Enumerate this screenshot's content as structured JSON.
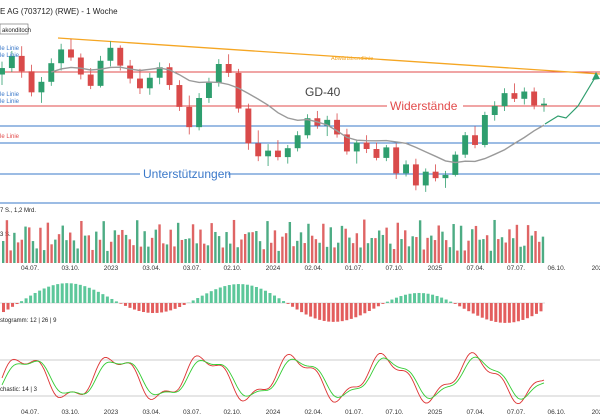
{
  "header": {
    "title": "E AG (703712) (RWE) - 1 Woche",
    "badge": "akonditoch"
  },
  "left_labels": {
    "l1": "le Linie",
    "l2": "le Linie",
    "l3": "le Linie",
    "l4": "le Linie",
    "red": "le Linie",
    "vol_info": "7 S., 1,2 Mrd.",
    "vol_tag": "3 S.",
    "macd_label": "stogramm: 12 | 26 | 9",
    "stoch_label": "chastic: 14 | 3"
  },
  "annotations": {
    "downtrend": "Abwärtstrendlinie",
    "ma": "GD-40",
    "resistance": "Widerstände",
    "support": "Unterstützungen"
  },
  "colors": {
    "up": "#2e9e6e",
    "down": "#d94a4a",
    "trend": "#f5a623",
    "resistance": "#e24b4b",
    "support": "#3a78c9",
    "ma": "#9a9a9a",
    "projection": "#2f9e6e",
    "macd_up": "#5cc79a",
    "macd_down": "#e35d5d",
    "stoch_k": "#d33",
    "stoch_d": "#3c3"
  },
  "x_ticks": [
    "04.07.",
    "03.10.",
    "2023",
    "03.04.",
    "03.07.",
    "02.10.",
    "2024",
    "02.04.",
    "01.07.",
    "07.10.",
    "2025",
    "07.04.",
    "07.07.",
    "06.10.",
    "202"
  ],
  "chart_data": {
    "type": "candlestick",
    "title": "E AG (703712) (RWE) - 1 Woche",
    "interval": "1 Woche",
    "grid": false,
    "price_levels": {
      "resistance": [
        41.6,
        38.3
      ],
      "support": [
        32.4,
        31.5,
        28.0,
        25.8
      ],
      "note": "horizontal levels shown as lines; values estimated (no price axis printed)"
    },
    "series": [
      {
        "name": "GD-40",
        "type": "line"
      },
      {
        "name": "Volumen",
        "type": "bar"
      },
      {
        "name": "MACD Histogramm",
        "params": [
          12,
          26,
          9
        ]
      },
      {
        "name": "Stochastic",
        "params": [
          14,
          3
        ]
      }
    ],
    "candles_estimated": [
      [
        40.5,
        42.1,
        39.2,
        41.3
      ],
      [
        41.3,
        43.4,
        40.8,
        42.8
      ],
      [
        42.8,
        44.0,
        40.1,
        40.9
      ],
      [
        40.9,
        41.7,
        37.8,
        38.3
      ],
      [
        38.3,
        40.2,
        37.0,
        39.6
      ],
      [
        39.6,
        42.5,
        39.1,
        41.9
      ],
      [
        41.9,
        44.3,
        41.0,
        43.6
      ],
      [
        43.6,
        44.9,
        42.2,
        42.6
      ],
      [
        42.6,
        43.1,
        39.9,
        40.5
      ],
      [
        40.5,
        41.3,
        38.7,
        39.1
      ],
      [
        39.1,
        42.8,
        38.9,
        42.2
      ],
      [
        42.2,
        44.6,
        41.5,
        43.8
      ],
      [
        43.8,
        44.1,
        41.0,
        41.6
      ],
      [
        41.6,
        42.3,
        39.4,
        40.0
      ],
      [
        40.0,
        41.2,
        38.1,
        38.8
      ],
      [
        38.8,
        40.7,
        38.0,
        40.1
      ],
      [
        40.1,
        42.0,
        39.3,
        41.4
      ],
      [
        41.4,
        41.9,
        38.6,
        39.2
      ],
      [
        39.2,
        39.8,
        36.0,
        36.5
      ],
      [
        36.5,
        37.9,
        33.1,
        34.0
      ],
      [
        34.0,
        38.2,
        33.6,
        37.6
      ],
      [
        37.6,
        40.1,
        37.0,
        39.5
      ],
      [
        39.5,
        42.4,
        39.0,
        41.8
      ],
      [
        41.8,
        43.0,
        40.2,
        40.7
      ],
      [
        40.7,
        41.2,
        35.8,
        36.3
      ],
      [
        36.3,
        36.9,
        31.2,
        32.0
      ],
      [
        32.0,
        33.6,
        29.8,
        30.4
      ],
      [
        30.4,
        31.9,
        29.2,
        31.1
      ],
      [
        31.1,
        32.4,
        29.9,
        30.3
      ],
      [
        30.3,
        31.8,
        29.5,
        31.4
      ],
      [
        31.4,
        33.5,
        31.0,
        33.0
      ],
      [
        33.0,
        35.6,
        32.6,
        35.1
      ],
      [
        35.1,
        36.0,
        33.8,
        34.2
      ],
      [
        34.2,
        35.4,
        32.9,
        34.9
      ],
      [
        34.9,
        35.7,
        32.7,
        33.1
      ],
      [
        33.1,
        33.8,
        30.6,
        31.0
      ],
      [
        31.0,
        32.4,
        29.5,
        32.1
      ],
      [
        32.1,
        33.0,
        30.8,
        31.3
      ],
      [
        31.3,
        32.1,
        29.9,
        30.2
      ],
      [
        30.2,
        31.8,
        29.8,
        31.5
      ],
      [
        31.5,
        32.0,
        27.6,
        28.3
      ],
      [
        28.3,
        29.9,
        27.9,
        29.4
      ],
      [
        29.4,
        30.1,
        26.2,
        26.8
      ],
      [
        26.8,
        28.9,
        26.0,
        28.5
      ],
      [
        28.5,
        29.4,
        27.3,
        27.7
      ],
      [
        27.7,
        28.6,
        26.5,
        28.1
      ],
      [
        28.1,
        31.0,
        27.9,
        30.6
      ],
      [
        30.6,
        33.4,
        30.2,
        33.0
      ],
      [
        33.0,
        34.1,
        31.4,
        31.8
      ],
      [
        31.8,
        35.9,
        31.5,
        35.5
      ],
      [
        35.5,
        37.2,
        34.8,
        36.6
      ],
      [
        36.6,
        38.8,
        36.0,
        38.2
      ],
      [
        38.2,
        39.4,
        37.1,
        37.5
      ],
      [
        37.5,
        38.9,
        36.8,
        38.4
      ],
      [
        38.4,
        38.9,
        36.2,
        36.7
      ],
      [
        36.7,
        37.6,
        35.9,
        36.9
      ]
    ]
  }
}
